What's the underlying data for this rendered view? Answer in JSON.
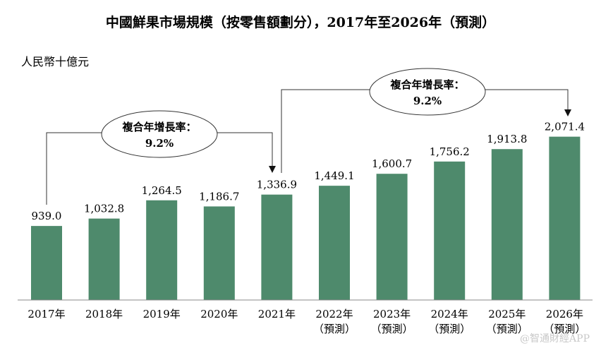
{
  "chart_data": {
    "type": "bar",
    "title": "中國鮮果市場規模（按零售額劃分），2017年至2026年（預測）",
    "unit_label": "人民幣十億元",
    "categories": [
      "2017年",
      "2018年",
      "2019年",
      "2020年",
      "2021年",
      "2022年",
      "2023年",
      "2024年",
      "2025年",
      "2026年"
    ],
    "category_notes": [
      "",
      "",
      "",
      "",
      "",
      "（預測）",
      "（預測）",
      "（預測）",
      "（預測）",
      "（預測）"
    ],
    "values": [
      939.0,
      1032.8,
      1264.5,
      1186.7,
      1336.9,
      1449.1,
      1600.7,
      1756.2,
      1913.8,
      2071.4
    ],
    "value_labels": [
      "939.0",
      "1,032.8",
      "1,264.5",
      "1,186.7",
      "1,336.9",
      "1,449.1",
      "1,600.7",
      "1,756.2",
      "1,913.8",
      "2,071.4"
    ],
    "bar_color": "#4e8a6c",
    "annotations": [
      {
        "label": "複合年增長率：",
        "value": "9.2%",
        "from": "2017年",
        "to": "2021年"
      },
      {
        "label": "複合年增長率：",
        "value": "9.2%",
        "from": "2021年",
        "to": "2026年"
      }
    ],
    "grid": false,
    "legend": "none"
  },
  "watermark": "@智通財經APP"
}
